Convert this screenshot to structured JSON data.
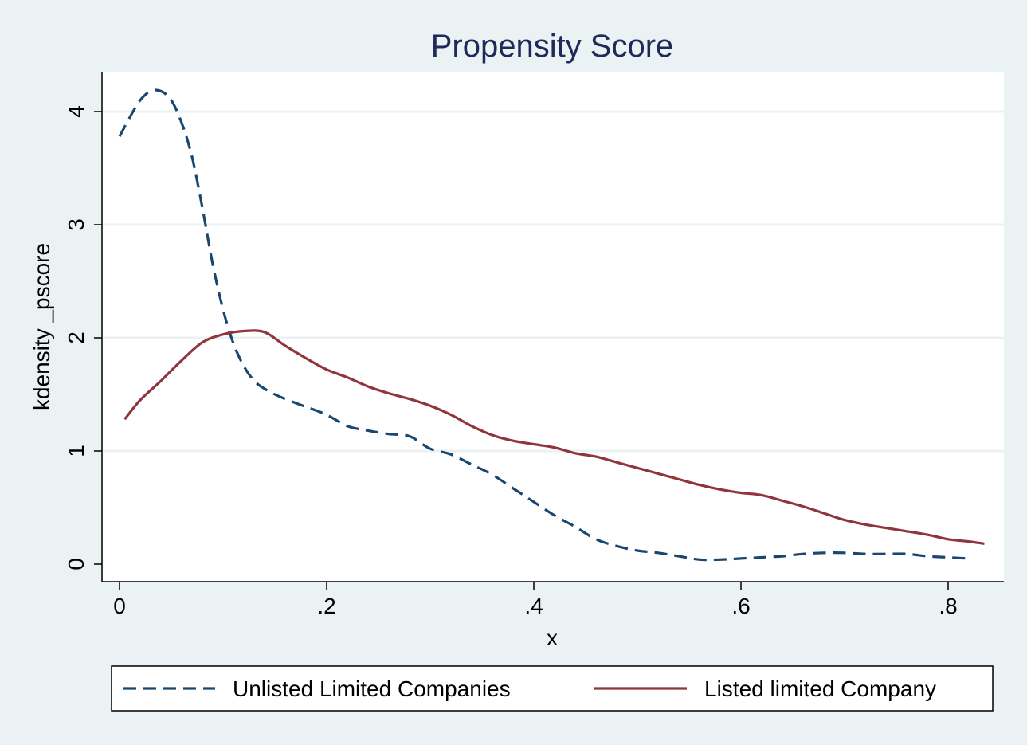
{
  "chart_data": {
    "type": "line",
    "title": "Propensity Score",
    "xlabel": "x",
    "ylabel": "kdensity _pscore",
    "xlim": [
      0,
      0.84
    ],
    "ylim": [
      0,
      4.2
    ],
    "xticks": [
      {
        "value": 0,
        "label": "0"
      },
      {
        "value": 0.2,
        "label": ".2"
      },
      {
        "value": 0.4,
        "label": ".4"
      },
      {
        "value": 0.6,
        "label": ".6"
      },
      {
        "value": 0.8,
        "label": ".8"
      }
    ],
    "yticks": [
      {
        "value": 0,
        "label": "0"
      },
      {
        "value": 1,
        "label": "1"
      },
      {
        "value": 2,
        "label": "2"
      },
      {
        "value": 3,
        "label": "3"
      },
      {
        "value": 4,
        "label": "4"
      }
    ],
    "grid": true,
    "legend_position": "bottom",
    "series": [
      {
        "name": "Unlisted Limited Companies",
        "color": "#1a476f",
        "dash": "dashed",
        "x": [
          0,
          0.01,
          0.02,
          0.03,
          0.04,
          0.05,
          0.06,
          0.07,
          0.08,
          0.09,
          0.1,
          0.11,
          0.12,
          0.13,
          0.14,
          0.15,
          0.16,
          0.18,
          0.2,
          0.22,
          0.24,
          0.26,
          0.28,
          0.3,
          0.32,
          0.34,
          0.36,
          0.38,
          0.4,
          0.42,
          0.44,
          0.46,
          0.48,
          0.5,
          0.52,
          0.54,
          0.56,
          0.58,
          0.6,
          0.62,
          0.64,
          0.66,
          0.68,
          0.7,
          0.72,
          0.74,
          0.76,
          0.78,
          0.8,
          0.82
        ],
        "y": [
          3.78,
          3.95,
          4.1,
          4.18,
          4.18,
          4.1,
          3.9,
          3.6,
          3.15,
          2.65,
          2.25,
          1.95,
          1.75,
          1.62,
          1.55,
          1.5,
          1.46,
          1.39,
          1.32,
          1.22,
          1.18,
          1.15,
          1.13,
          1.02,
          0.97,
          0.88,
          0.79,
          0.67,
          0.55,
          0.43,
          0.33,
          0.22,
          0.16,
          0.12,
          0.1,
          0.07,
          0.04,
          0.04,
          0.05,
          0.06,
          0.07,
          0.09,
          0.1,
          0.1,
          0.09,
          0.09,
          0.09,
          0.07,
          0.06,
          0.05
        ]
      },
      {
        "name": "Listed limited Company",
        "color": "#90353b",
        "dash": "solid",
        "x": [
          0.005,
          0.02,
          0.04,
          0.06,
          0.08,
          0.1,
          0.12,
          0.14,
          0.16,
          0.18,
          0.2,
          0.22,
          0.24,
          0.26,
          0.28,
          0.3,
          0.32,
          0.34,
          0.36,
          0.38,
          0.4,
          0.42,
          0.44,
          0.46,
          0.48,
          0.5,
          0.52,
          0.54,
          0.56,
          0.58,
          0.6,
          0.62,
          0.64,
          0.66,
          0.68,
          0.7,
          0.72,
          0.74,
          0.76,
          0.78,
          0.8,
          0.82,
          0.835
        ],
        "y": [
          1.28,
          1.45,
          1.62,
          1.8,
          1.96,
          2.03,
          2.06,
          2.05,
          1.93,
          1.82,
          1.72,
          1.65,
          1.57,
          1.51,
          1.46,
          1.4,
          1.32,
          1.22,
          1.14,
          1.09,
          1.06,
          1.03,
          0.98,
          0.95,
          0.9,
          0.85,
          0.8,
          0.75,
          0.7,
          0.66,
          0.63,
          0.61,
          0.56,
          0.51,
          0.45,
          0.39,
          0.35,
          0.32,
          0.29,
          0.26,
          0.22,
          0.2,
          0.18
        ]
      }
    ]
  }
}
